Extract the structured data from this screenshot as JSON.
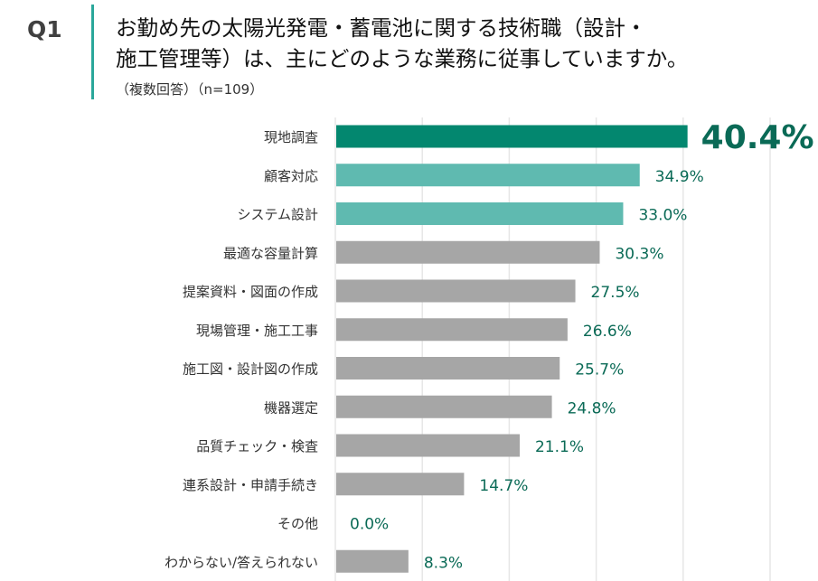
{
  "header": {
    "question_id": "Q1",
    "title_line1": "お勤め先の太陽光発電・蓄電池に関する技術職（設計・",
    "title_line2": "施工管理等）は、主にどのような業務に従事していますか。",
    "subtitle": "（複数回答）（n=109）"
  },
  "colors": {
    "top": "#03876f",
    "second": "#5fbab0",
    "other": "#a6a6a6",
    "label": "#0a6a56",
    "divider": "#2aa79a",
    "grid": "#e6e6e6"
  },
  "chart_data": {
    "type": "bar",
    "orientation": "horizontal",
    "title": "お勤め先の太陽光発電・蓄電池に関する技術職（設計・施工管理等）は、主にどのような業務に従事していますか。",
    "xlabel": "",
    "ylabel": "",
    "xlim": [
      0,
      50
    ],
    "grid": true,
    "gridline_step": 10,
    "categories": [
      "現地調査",
      "顧客対応",
      "システム設計",
      "最適な容量計算",
      "提案資料・図面の作成",
      "現場管理・施工工事",
      "施工図・設計図の作成",
      "機器選定",
      "品質チェック・検査",
      "連系設計・申請手続き",
      "その他",
      "わからない/答えられない"
    ],
    "values": [
      40.4,
      34.9,
      33.0,
      30.3,
      27.5,
      26.6,
      25.7,
      24.8,
      21.1,
      14.7,
      0.0,
      8.3
    ],
    "labels": [
      "40.4%",
      "34.9%",
      "33.0%",
      "30.3%",
      "27.5%",
      "26.6%",
      "25.7%",
      "24.8%",
      "21.1%",
      "14.7%",
      "0.0%",
      "8.3%"
    ],
    "highlight": [
      "top",
      "second",
      "second",
      "other",
      "other",
      "other",
      "other",
      "other",
      "other",
      "other",
      "other",
      "other"
    ]
  }
}
